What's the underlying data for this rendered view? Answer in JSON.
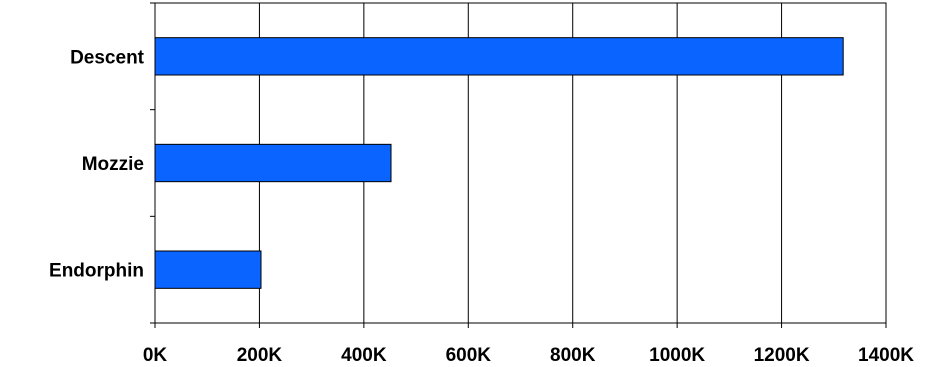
{
  "chart_data": {
    "type": "bar",
    "orientation": "horizontal",
    "categories": [
      "Descent",
      "Mozzie",
      "Endorphin"
    ],
    "values": [
      1318000,
      452000,
      203000
    ],
    "xlim": [
      0,
      1400000
    ],
    "xticks": [
      0,
      200000,
      400000,
      600000,
      800000,
      1000000,
      1200000,
      1400000
    ],
    "xtick_labels": [
      "0K",
      "200K",
      "400K",
      "600K",
      "800K",
      "1000K",
      "1200K",
      "1400K"
    ],
    "grid": "vertical",
    "legend": "none",
    "title": "",
    "xlabel": "",
    "ylabel": ""
  },
  "colors": {
    "bar": "#0a64ff",
    "bar_stroke": "#000000",
    "grid": "#000000",
    "background": "#ffffff"
  }
}
